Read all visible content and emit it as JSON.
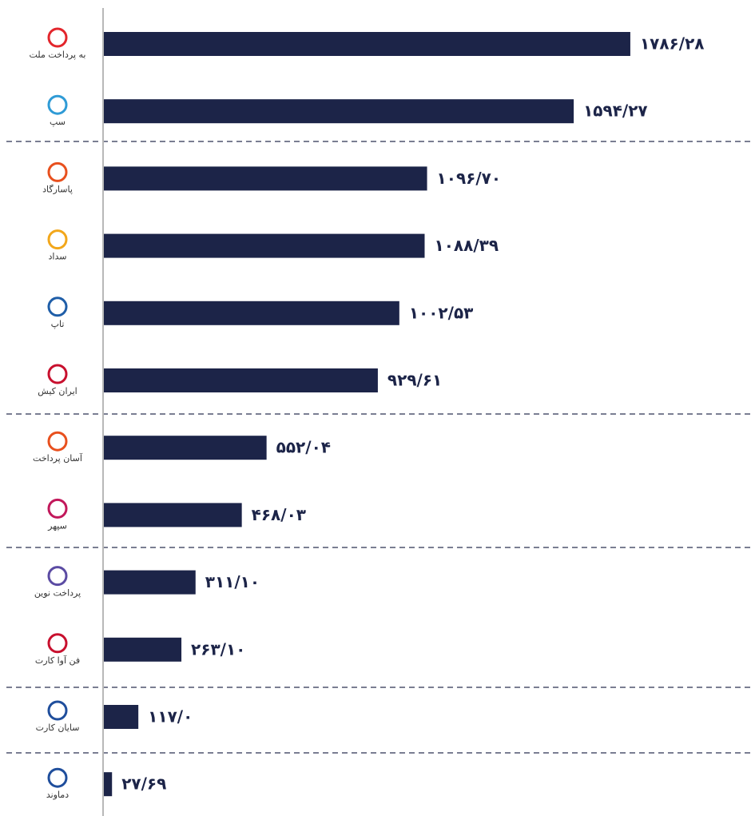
{
  "chart_data": {
    "type": "bar",
    "orientation": "horizontal",
    "categories": [
      "به پرداخت ملت",
      "سپ",
      "پاسارگاد",
      "سداد",
      "تاپ",
      "ایران کیش",
      "آسان پرداخت",
      "سپهر",
      "پرداخت نوین",
      "فن آوا کارت",
      "سایان کارت",
      "دماوند"
    ],
    "values": [
      1786.28,
      1594.27,
      1096.7,
      1088.39,
      1002.53,
      929.61,
      552.04,
      468.03,
      311.1,
      263.1,
      117.0,
      27.69
    ],
    "value_labels": [
      "۱۷۸۶/۲۸",
      "۱۵۹۴/۲۷",
      "۱۰۹۶/۷۰",
      "۱۰۸۸/۳۹",
      "۱۰۰۲/۵۳",
      "۹۲۹/۶۱",
      "۵۵۲/۰۴",
      "۴۶۸/۰۳",
      "۳۱۱/۱۰",
      "۲۶۳/۱۰",
      "۱۱۷/۰",
      "۲۷/۶۹"
    ],
    "color": "#1c2448",
    "xlim": [
      0,
      1800
    ]
  }
}
